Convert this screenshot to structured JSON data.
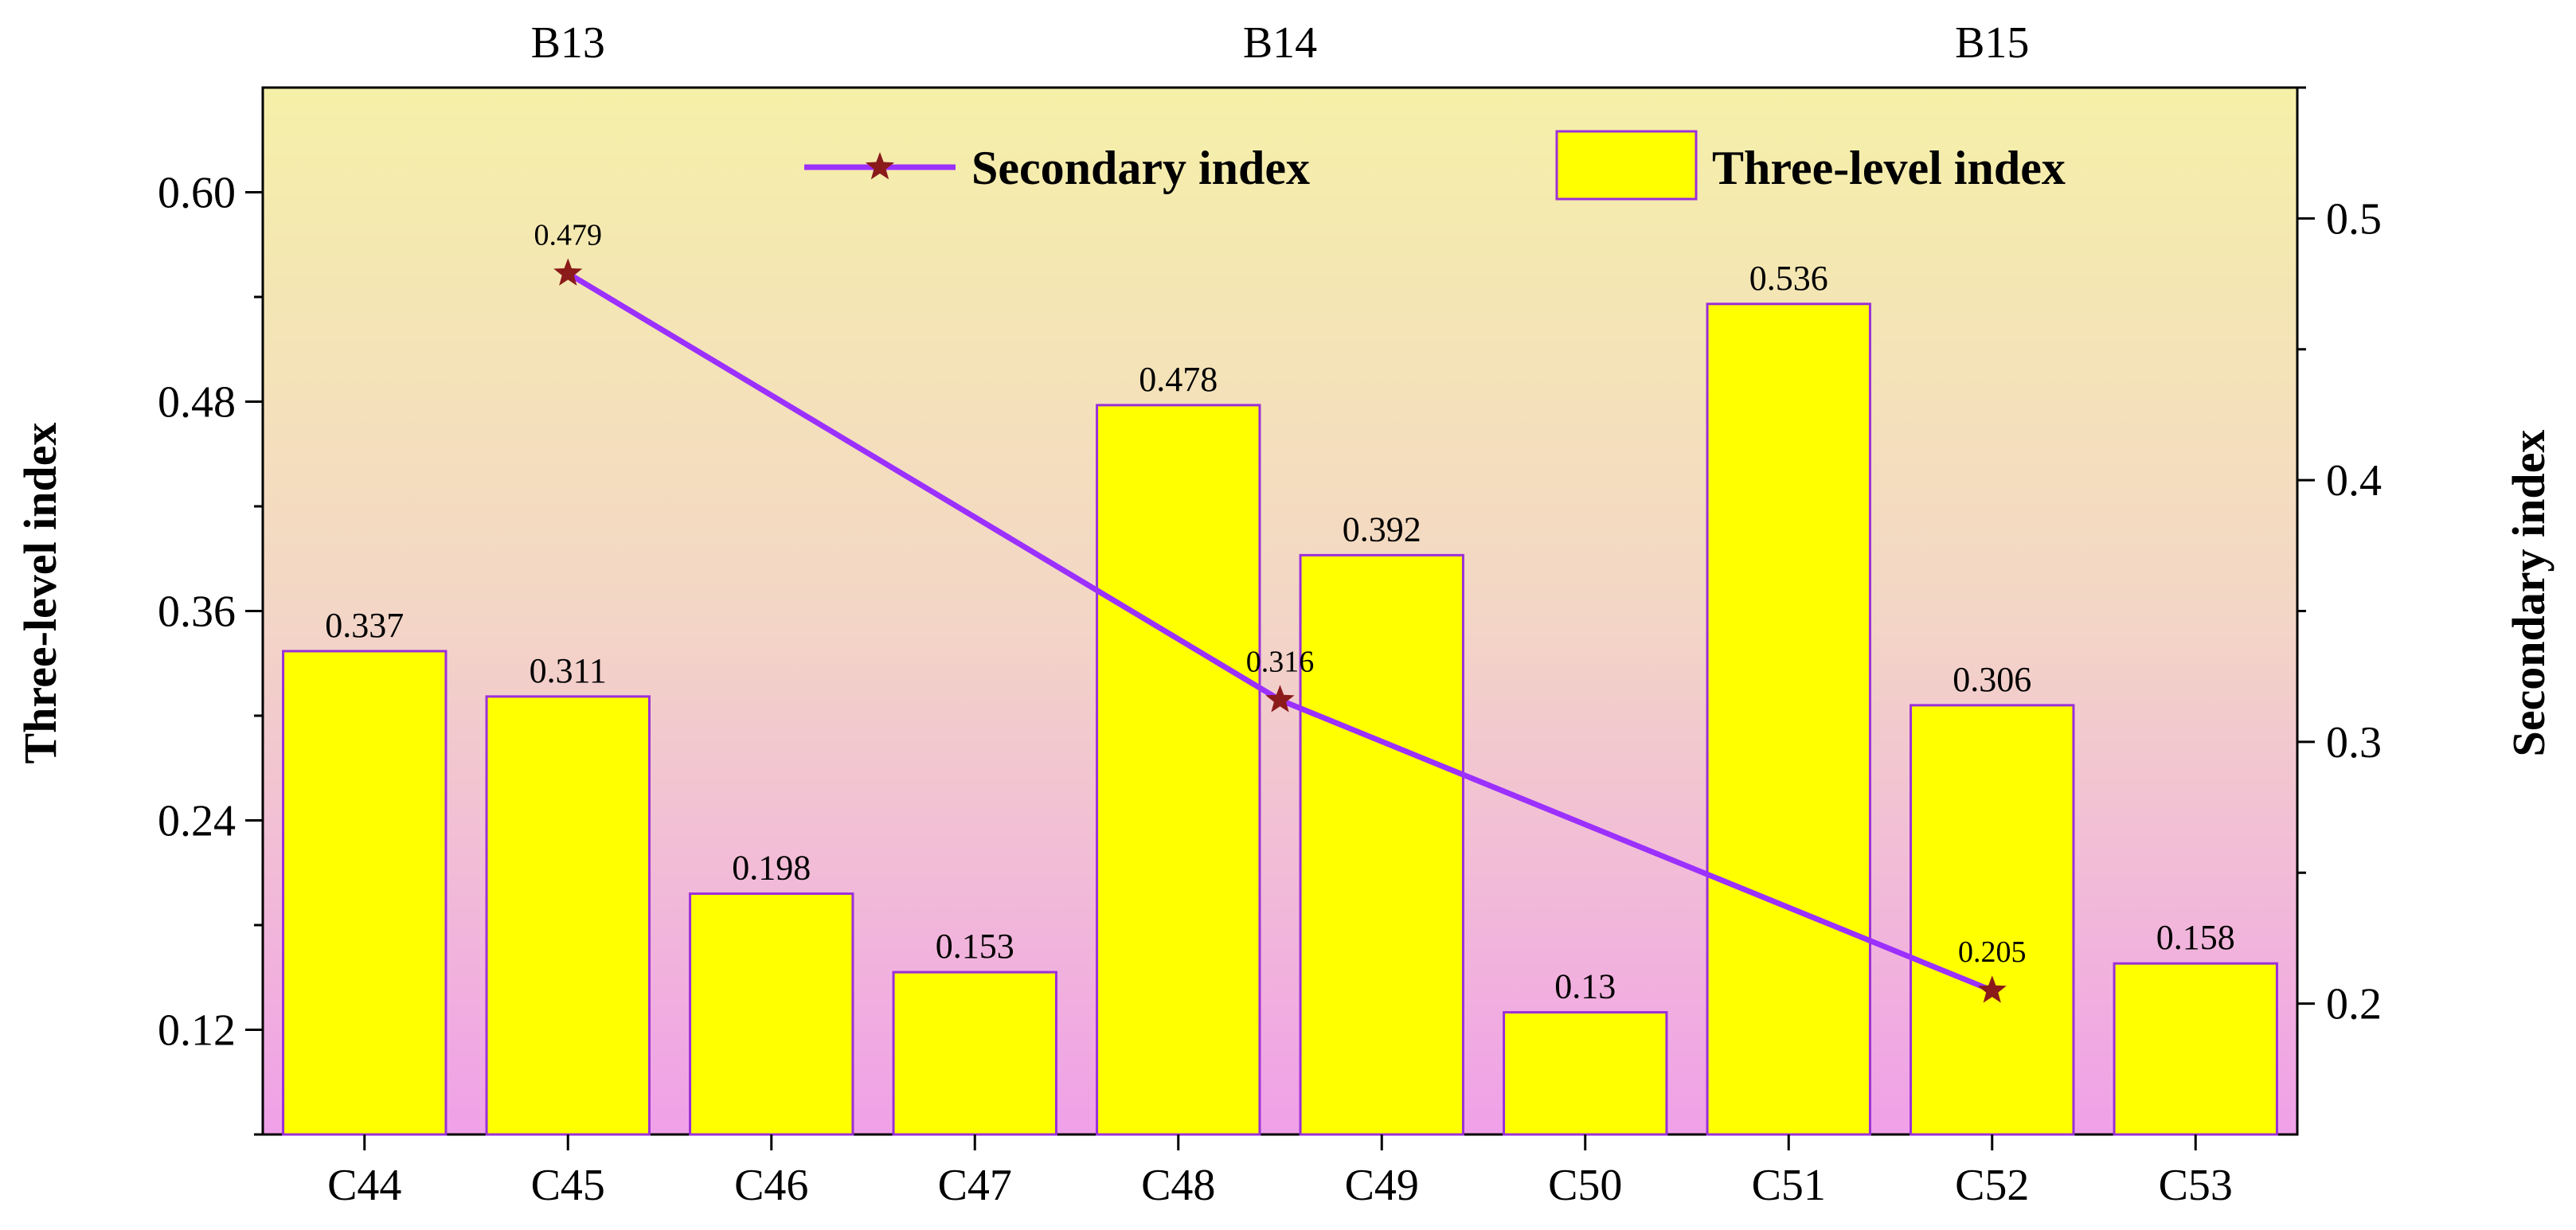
{
  "chart_data": {
    "type": "bar",
    "categories": [
      "C44",
      "C45",
      "C46",
      "C47",
      "C48",
      "C49",
      "C50",
      "C51",
      "C52",
      "C53"
    ],
    "series": [
      {
        "name": "Three-level index",
        "axis": "left",
        "type": "bar",
        "values": [
          0.337,
          0.311,
          0.198,
          0.153,
          0.478,
          0.392,
          0.13,
          0.536,
          0.306,
          0.158
        ],
        "labels": [
          "0.337",
          "0.311",
          "0.198",
          "0.153",
          "0.478",
          "0.392",
          "0.13",
          "0.536",
          "0.306",
          "0.158"
        ]
      },
      {
        "name": "Secondary index",
        "axis": "right",
        "type": "line",
        "points": [
          {
            "at": "C45",
            "value": 0.479,
            "label": "0.479"
          },
          {
            "at": "C48|C49",
            "value": 0.316,
            "label": "0.316"
          },
          {
            "at": "C52",
            "value": 0.205,
            "label": "0.205"
          }
        ]
      }
    ],
    "group_labels": [
      "B13",
      "B14",
      "B15"
    ],
    "left_axis": {
      "title": "Three-level index",
      "ylim": [
        0.06,
        0.66
      ],
      "ticks": [
        "0.12",
        "0.24",
        "0.36",
        "0.48",
        "0.60"
      ]
    },
    "right_axis": {
      "title": "Secondary index",
      "ylim": [
        0.15,
        0.55
      ],
      "ticks": [
        "0.2",
        "0.3",
        "0.4",
        "0.5"
      ]
    },
    "legend": {
      "placement": "top-right",
      "entries": [
        "Secondary index",
        "Three-level index"
      ]
    },
    "colors": {
      "bar_fill": "#ffff00",
      "bar_stroke": "#9b30d9",
      "line": "#9b30ff",
      "marker": "#8b1a1a",
      "bg_top": "#f5f0a8",
      "bg_mid": "#f3d6c6",
      "bg_bottom": "#f0a0e8"
    }
  }
}
